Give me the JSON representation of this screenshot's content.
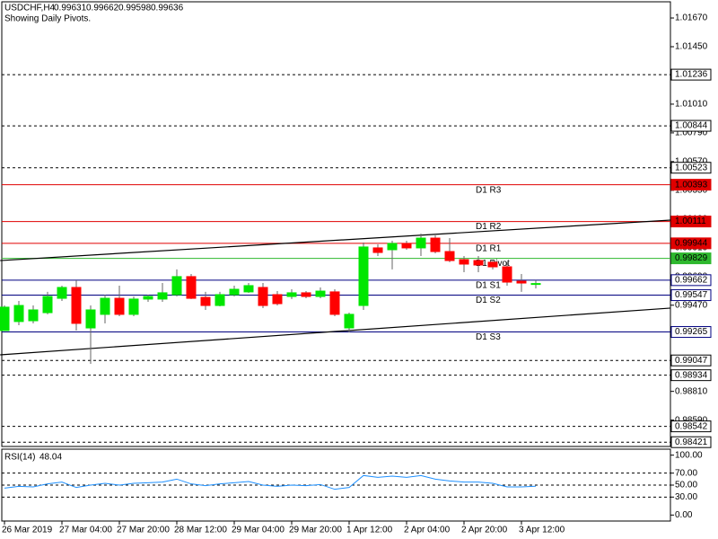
{
  "chart_data": [
    {
      "type": "candlestick",
      "title": "USDCHF,H4",
      "quote": [
        0.99631,
        0.99662,
        0.99598,
        0.99636
      ],
      "subtitle": "Showing Daily Pivots.",
      "categories": [
        "26 Mar 2019",
        null,
        null,
        null,
        "27 Mar 04:00",
        null,
        null,
        null,
        "27 Mar 20:00",
        null,
        null,
        null,
        "28 Mar 12:00",
        null,
        null,
        null,
        "29 Mar 04:00",
        null,
        null,
        null,
        "29 Mar 20:00",
        null,
        null,
        null,
        "1 Apr 12:00",
        null,
        null,
        null,
        "2 Apr 04:00",
        null,
        null,
        null,
        "2 Apr 20:00",
        null,
        null,
        null,
        "3 Apr 12:00",
        null
      ],
      "open": [
        0.99276,
        0.99345,
        0.99351,
        0.99413,
        0.99523,
        0.99606,
        0.99296,
        0.994,
        0.99523,
        0.994,
        0.99517,
        0.99517,
        0.99551,
        0.99689,
        0.9953,
        0.99468,
        0.99551,
        0.99572,
        0.99606,
        0.99551,
        0.99537,
        0.99565,
        0.99537,
        0.99572,
        0.99296,
        0.99468,
        0.99909,
        0.99895,
        0.99943,
        0.99909,
        0.99984,
        0.99881,
        0.99819,
        0.99812,
        0.99799,
        0.99764,
        0.99654,
        0.99631
      ],
      "high": [
        0.99468,
        0.99503,
        0.99468,
        0.99572,
        0.9962,
        0.99661,
        0.99468,
        0.99551,
        0.9962,
        0.99537,
        0.99551,
        0.9964,
        0.99744,
        0.99709,
        0.99572,
        0.99572,
        0.9962,
        0.9964,
        0.9964,
        0.99578,
        0.99592,
        0.99578,
        0.99606,
        0.99592,
        0.99413,
        0.9995,
        0.99936,
        0.99964,
        0.99964,
        1.00019,
        1.00005,
        0.99984,
        0.99847,
        0.99847,
        0.99812,
        0.99799,
        0.99709,
        0.99662
      ],
      "low": [
        0.99276,
        0.99317,
        0.99331,
        0.994,
        0.99503,
        0.99276,
        0.99021,
        0.99331,
        0.99386,
        0.99386,
        0.99496,
        0.99496,
        0.99537,
        0.99517,
        0.99434,
        0.99461,
        0.99537,
        0.99565,
        0.99448,
        0.99468,
        0.99517,
        0.99523,
        0.99523,
        0.99386,
        0.99262,
        0.99434,
        0.99847,
        0.99744,
        0.99895,
        0.99847,
        0.99867,
        0.99799,
        0.99723,
        0.99723,
        0.99744,
        0.9962,
        0.99572,
        0.99598
      ],
      "close": [
        0.99455,
        0.99468,
        0.99434,
        0.99537,
        0.99606,
        0.99331,
        0.99434,
        0.99523,
        0.994,
        0.99517,
        0.99537,
        0.99565,
        0.99689,
        0.99523,
        0.99468,
        0.99551,
        0.99592,
        0.9962,
        0.99468,
        0.99482,
        0.99565,
        0.99537,
        0.99578,
        0.994,
        0.994,
        0.99916,
        0.99874,
        0.99943,
        0.99909,
        0.99984,
        0.99881,
        0.99812,
        0.99785,
        0.99778,
        0.99764,
        0.99647,
        0.9964,
        0.99636
      ],
      "up_color": "#00e600",
      "down_color": "#ff0000",
      "wick_color": "#666666",
      "ylim": [
        0.98388,
        1.01794
      ],
      "yticks": [
        {
          "value": 1.0167,
          "label": "1.01670"
        },
        {
          "value": 1.0145,
          "label": "1.01450"
        },
        {
          "value": 1.0123,
          "label": "1.01230"
        },
        {
          "value": 1.0101,
          "label": "1.01010"
        },
        {
          "value": 1.0079,
          "label": "1.00790"
        },
        {
          "value": 1.0057,
          "label": "1.00570"
        },
        {
          "value": 1.0035,
          "label": "1.00350"
        },
        {
          "value": 1.0013,
          "label": "1.00130"
        },
        {
          "value": 0.9991,
          "label": "0.99910"
        },
        {
          "value": 0.9969,
          "label": "0.99690"
        },
        {
          "value": 0.9947,
          "label": "0.99470"
        },
        {
          "value": 0.9925,
          "label": "0.99250"
        },
        {
          "value": 0.9903,
          "label": "0.99030"
        },
        {
          "value": 0.9881,
          "label": "0.98810"
        },
        {
          "value": 0.9859,
          "label": "0.98590"
        }
      ],
      "levels": [
        {
          "value": 1.01236,
          "color": "#000000",
          "dashed": true,
          "filled": false
        },
        {
          "value": 1.00844,
          "color": "#000000",
          "dashed": true,
          "filled": false
        },
        {
          "value": 1.00523,
          "color": "#000000",
          "dashed": true,
          "filled": false
        },
        {
          "value": 1.00393,
          "name": "D1 R3",
          "color": "#e00000",
          "dashed": false,
          "filled": true
        },
        {
          "value": 1.00111,
          "name": "D1 R2",
          "color": "#e00000",
          "dashed": false,
          "filled": true
        },
        {
          "value": 0.99944,
          "name": "D1 R1",
          "color": "#e00000",
          "dashed": false,
          "filled": true
        },
        {
          "value": 0.99829,
          "name": "D1 Pivot",
          "color": "#2eb82e",
          "dashed": false,
          "filled": true
        },
        {
          "value": 0.99662,
          "name": "D1 S1",
          "color": "#000080",
          "dashed": false,
          "filled": false
        },
        {
          "value": 0.99547,
          "name": "D1 S2",
          "color": "#000080",
          "dashed": false,
          "filled": false
        },
        {
          "value": 0.99265,
          "name": "D1 S3",
          "color": "#000080",
          "dashed": false,
          "filled": false
        },
        {
          "value": 0.99047,
          "color": "#000000",
          "dashed": true,
          "filled": false
        },
        {
          "value": 0.98934,
          "color": "#000000",
          "dashed": true,
          "filled": false
        },
        {
          "value": 0.98542,
          "color": "#000000",
          "dashed": true,
          "filled": false
        },
        {
          "value": 0.98421,
          "color": "#000000",
          "dashed": true,
          "filled": false
        }
      ],
      "trendlines": [
        {
          "x": [
            -0.3,
            46.4
          ],
          "values": [
            0.99812,
            1.00122
          ],
          "color": "#000000"
        },
        {
          "x": [
            -0.3,
            46.4
          ],
          "values": [
            0.9909,
            0.99448
          ],
          "color": "#000000"
        }
      ]
    },
    {
      "type": "line",
      "title": "RSI(14)",
      "values": [
        45,
        48,
        47,
        52,
        55,
        46,
        50,
        53,
        50,
        53,
        54,
        55,
        60,
        52,
        49,
        52,
        54,
        56,
        50,
        48,
        50,
        49,
        51,
        43,
        46,
        66,
        63,
        65,
        63,
        66,
        60,
        57,
        55,
        55,
        53,
        47,
        47,
        48.04
      ],
      "color": "#1e90ff",
      "ylim": [
        -10,
        110
      ],
      "yticks": [
        {
          "value": 100,
          "label": "100.00"
        },
        {
          "value": 70,
          "label": "70.00"
        },
        {
          "value": 50,
          "label": "50.00"
        },
        {
          "value": 30,
          "label": "30.00"
        },
        {
          "value": 0,
          "label": "0.00"
        }
      ],
      "dashed_levels": [
        70,
        50,
        30
      ]
    }
  ]
}
